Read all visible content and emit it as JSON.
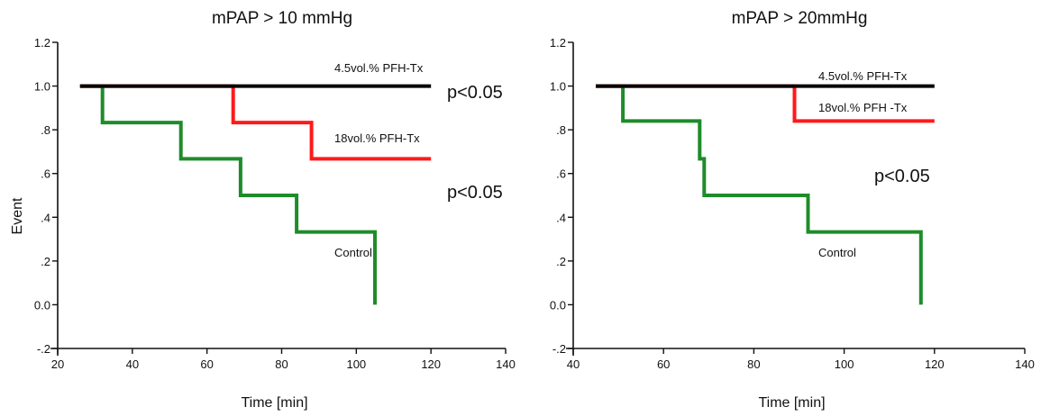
{
  "chart_data": [
    {
      "type": "line",
      "step": true,
      "title": "mPAP > 10 mmHg",
      "xlabel": "Time [min]",
      "ylabel": "Event",
      "xlim": [
        20,
        140
      ],
      "ylim": [
        -0.2,
        1.2
      ],
      "xticks": [
        "20",
        "40",
        "60",
        "80",
        "100",
        "120",
        "140"
      ],
      "yticks": [
        "-.2",
        "0.0",
        ".2",
        ".4",
        ".6",
        ".8",
        "1.0",
        "1.2"
      ],
      "grid": false,
      "series": [
        {
          "name": "4.5vol.% PFH-Tx",
          "color": "#000000",
          "x": [
            26,
            120
          ],
          "y": [
            1.0,
            1.0
          ]
        },
        {
          "name": "18vol.% PFH-Tx",
          "color": "#ff1a1a",
          "x": [
            26,
            67,
            88,
            120
          ],
          "y": [
            1.0,
            0.833,
            0.667,
            0.667
          ]
        },
        {
          "name": "Control",
          "color": "#1e8c2a",
          "x": [
            26,
            32,
            53,
            69,
            84,
            105,
            105
          ],
          "y": [
            1.0,
            0.833,
            0.667,
            0.5,
            0.333,
            0.167,
            0.0
          ]
        }
      ],
      "annotations": [
        "p<0.05",
        "p<0.05"
      ]
    },
    {
      "type": "line",
      "step": true,
      "title": "mPAP > 20mmHg",
      "xlabel": "Time [min]",
      "ylabel": "",
      "xlim": [
        40,
        140
      ],
      "ylim": [
        -0.2,
        1.2
      ],
      "xticks": [
        "40",
        "60",
        "80",
        "100",
        "120",
        "140"
      ],
      "yticks": [
        "-.2",
        "0.0",
        ".2",
        ".4",
        ".6",
        ".8",
        "1.0",
        "1.2"
      ],
      "grid": false,
      "series": [
        {
          "name": "4.5vol.% PFH-Tx",
          "color": "#000000",
          "x": [
            45,
            120
          ],
          "y": [
            1.0,
            1.0
          ]
        },
        {
          "name": "18vol.% PFH -Tx",
          "color": "#ff1a1a",
          "x": [
            45,
            89,
            120
          ],
          "y": [
            1.0,
            0.84,
            0.84
          ]
        },
        {
          "name": "Control",
          "color": "#1e8c2a",
          "x": [
            45,
            51,
            68,
            69,
            92,
            117,
            117
          ],
          "y": [
            1.0,
            0.84,
            0.667,
            0.5,
            0.333,
            0.167,
            0.0
          ]
        }
      ],
      "annotations": [
        "p<0.05"
      ]
    }
  ]
}
